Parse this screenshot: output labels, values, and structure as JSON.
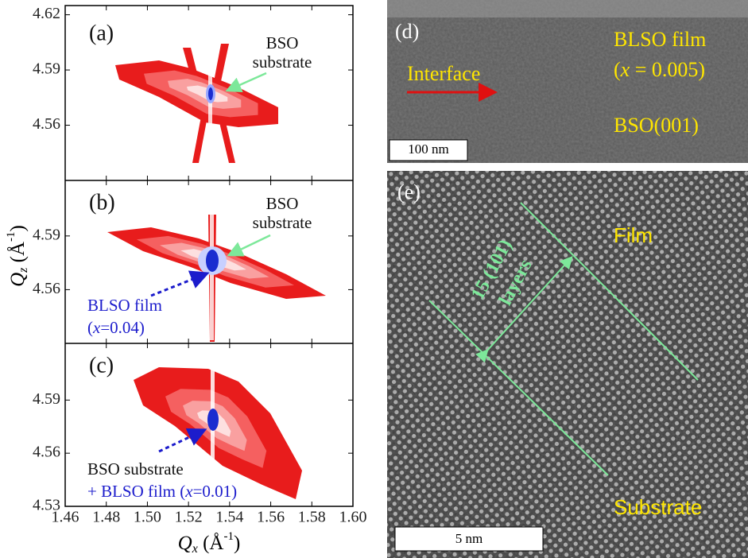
{
  "rsm": {
    "xlim": [
      1.46,
      1.6
    ],
    "xticks": [
      1.46,
      1.48,
      {
        "value": 1.5,
        "label": "1.50"
      },
      1.52,
      1.54,
      1.56,
      1.58,
      {
        "value": 1.6,
        "label": "1.60"
      }
    ],
    "x_label": {
      "symbol": "Q",
      "sub": "x",
      "unit": " (Å",
      "sup": "-1",
      "close": ")"
    },
    "y_label": {
      "symbol": "Q",
      "sub": "z",
      "unit": " (Å",
      "sup": "-1",
      "close": ")"
    },
    "panels": [
      {
        "label": "(a)",
        "ylim": [
          4.53,
          4.625
        ],
        "yticks": [
          4.56,
          4.59,
          4.62
        ],
        "annotation": [
          "BSO",
          "substrate"
        ]
      },
      {
        "label": "(b)",
        "ylim": [
          4.53,
          4.621
        ],
        "yticks": [
          4.56,
          4.59
        ],
        "annotation": [
          "BSO",
          "substrate"
        ],
        "film": [
          "BLSO film",
          "(",
          "x",
          "=0.04)"
        ]
      },
      {
        "label": "(c)",
        "ylim": [
          4.53,
          4.622
        ],
        "yticks": [
          4.53,
          4.56,
          4.59
        ],
        "annotation": [
          "BSO substrate"
        ],
        "film": [
          "+ BLSO film (",
          "x",
          "=0.01)"
        ]
      }
    ]
  },
  "tem": {
    "d": {
      "label": "(d)",
      "film": "BLSO film",
      "composition": [
        "(",
        "x",
        " = 0.005)"
      ],
      "interface": "Interface",
      "substrate": "BSO(001)",
      "scale_bar": "100 nm"
    },
    "e": {
      "label": "(e)",
      "layers": [
        "15 (101)",
        "layers"
      ],
      "film": "Film",
      "substrate": "Substrate",
      "scale_bar": "5 nm"
    }
  }
}
